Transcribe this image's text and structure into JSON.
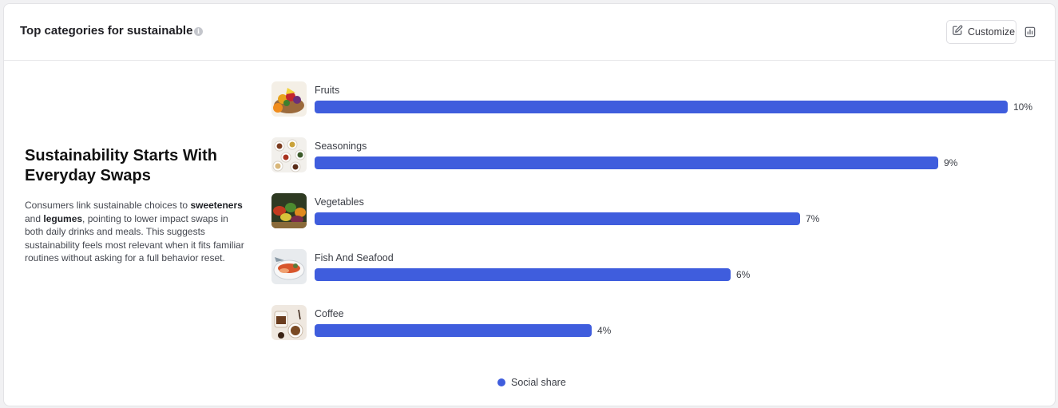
{
  "header": {
    "title": "Top categories for sustainable",
    "info_icon": "info-icon",
    "customize_label": "Customize",
    "customize_icon": "edit-icon",
    "chart_icon": "bar-chart-icon"
  },
  "insight": {
    "heading": "Sustainability Starts With Everyday Swaps",
    "body_parts": [
      {
        "text": "Consumers link sustainable choices to ",
        "bold": false
      },
      {
        "text": "sweeteners",
        "bold": true
      },
      {
        "text": " and ",
        "bold": false
      },
      {
        "text": "legumes",
        "bold": true
      },
      {
        "text": ", pointing to lower impact swaps in both daily drinks and meals. This suggests sustainability feels most relevant when it fits familiar routines without asking for a full behavior reset.",
        "bold": false
      }
    ]
  },
  "chart_data": {
    "type": "bar",
    "orientation": "horizontal",
    "categories": [
      "Fruits",
      "Seasonings",
      "Vegetables",
      "Fish And Seafood",
      "Coffee"
    ],
    "series": [
      {
        "name": "Social share",
        "values": [
          10,
          9,
          7,
          6,
          4
        ],
        "labels": [
          "10%",
          "9%",
          "7%",
          "6%",
          "4%"
        ]
      }
    ],
    "thumbnails": [
      "fruits-image",
      "seasonings-image",
      "vegetables-image",
      "fish-seafood-image",
      "coffee-image"
    ],
    "color": "#3f5ddd",
    "legend_position": "bottom-center"
  },
  "colors": {
    "accent": "#3f5ddd"
  }
}
